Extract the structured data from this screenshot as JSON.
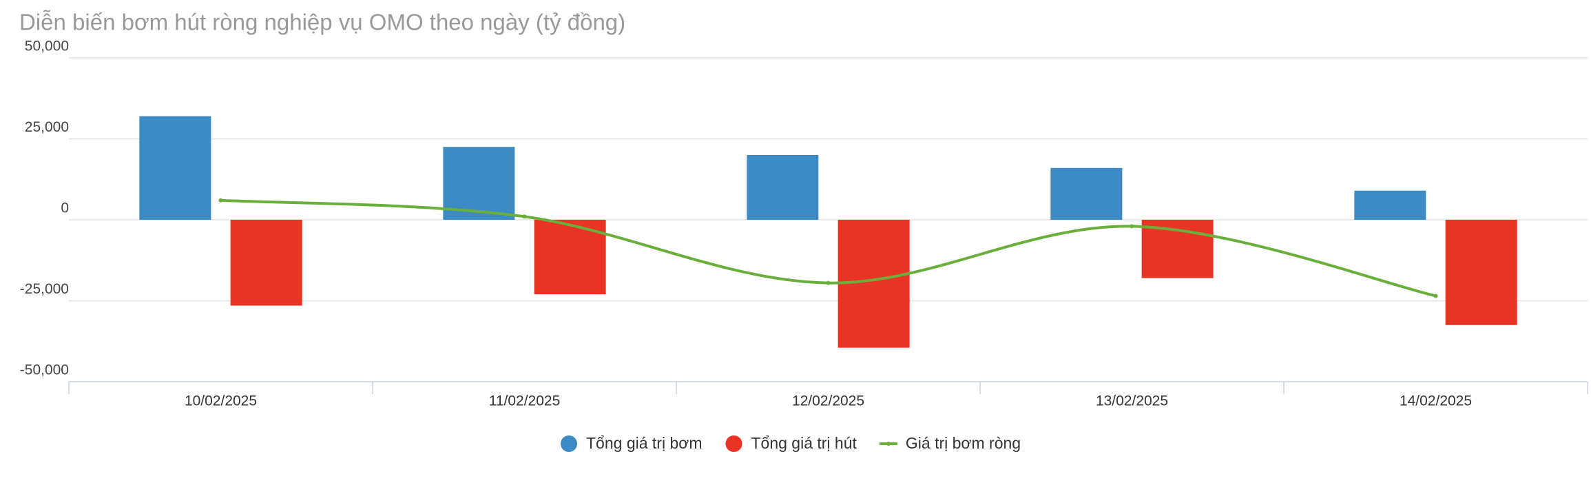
{
  "chart_data": {
    "type": "bar-line",
    "title": "Diễn biến bơm hút ròng nghiệp vụ OMO theo ngày (tỷ đồng)",
    "categories": [
      "10/02/2025",
      "11/02/2025",
      "12/02/2025",
      "13/02/2025",
      "14/02/2025"
    ],
    "series": [
      {
        "name": "Tổng giá trị bơm",
        "type": "bar",
        "color": "#3d8bc4",
        "values": [
          32000,
          22500,
          20000,
          16000,
          9000
        ]
      },
      {
        "name": "Tổng giá trị hút",
        "type": "bar",
        "color": "#e83424",
        "values": [
          -26500,
          -23000,
          -39500,
          -18000,
          -32500
        ]
      },
      {
        "name": "Giá trị bơm ròng",
        "type": "line",
        "color": "#6aaf3c",
        "values": [
          6000,
          1000,
          -19500,
          -2000,
          -23500
        ]
      }
    ],
    "ylim": [
      -50000,
      50000
    ],
    "yticks": [
      {
        "value": -50000,
        "label": "-50,000"
      },
      {
        "value": -25000,
        "label": "-25,000"
      },
      0,
      {
        "value": 25000,
        "label": "25,000"
      },
      {
        "value": 50000,
        "label": "50,000"
      }
    ],
    "grid": true
  }
}
